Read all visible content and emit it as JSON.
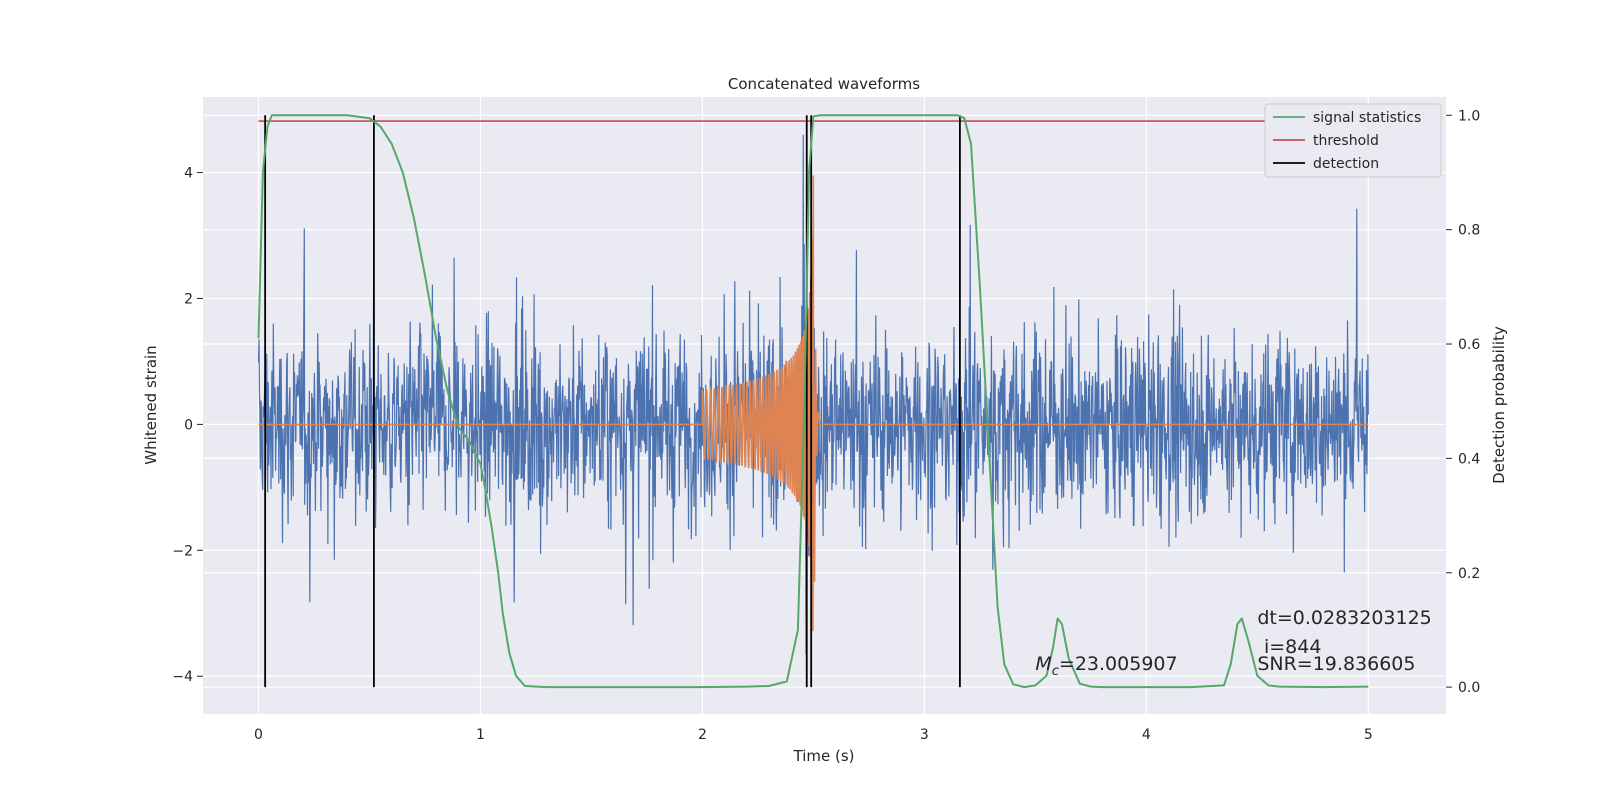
{
  "chart_data": {
    "type": "line",
    "title": "Concatenated waveforms",
    "xlabel": "Time (s)",
    "ylabel_left": "Whitened strain",
    "ylabel_right": "Detection probability",
    "xlim": [
      -0.25,
      5.35
    ],
    "ylim_left": [
      -4.6,
      5.2
    ],
    "ylim_right": [
      -0.047,
      1.032
    ],
    "x_ticks": [
      0,
      1,
      2,
      3,
      4,
      5
    ],
    "y_ticks_left": [
      -4,
      -2,
      0,
      2,
      4
    ],
    "y_ticks_left_labels": [
      "−4",
      "−2",
      "0",
      "2",
      "4"
    ],
    "y_ticks_right": [
      0.0,
      0.2,
      0.4,
      0.6,
      0.8,
      1.0
    ],
    "y_ticks_right_labels": [
      "0.0",
      "0.2",
      "0.4",
      "0.6",
      "0.8",
      "1.0"
    ],
    "grid": true,
    "legend_position": "top-right",
    "series": [
      {
        "name": "signal statistics",
        "axis": "right",
        "color": "#55a868",
        "x": [
          0.0,
          0.02,
          0.04,
          0.06,
          0.1,
          0.2,
          0.3,
          0.4,
          0.5,
          0.55,
          0.6,
          0.65,
          0.7,
          0.75,
          0.8,
          0.85,
          0.9,
          0.95,
          1.0,
          1.02,
          1.05,
          1.08,
          1.1,
          1.13,
          1.16,
          1.2,
          1.3,
          1.5,
          1.8,
          2.0,
          2.2,
          2.3,
          2.38,
          2.43,
          2.46,
          2.48,
          2.5,
          2.53,
          2.6,
          2.8,
          3.0,
          3.15,
          3.18,
          3.21,
          3.25,
          3.3,
          3.33,
          3.36,
          3.4,
          3.45,
          3.5,
          3.55,
          3.58,
          3.6,
          3.62,
          3.65,
          3.7,
          3.75,
          3.8,
          3.9,
          4.0,
          4.2,
          4.35,
          4.38,
          4.41,
          4.43,
          4.46,
          4.5,
          4.55,
          4.6,
          4.8,
          5.0
        ],
        "y": [
          0.61,
          0.9,
          0.98,
          1.0,
          1.0,
          1.0,
          1.0,
          1.0,
          0.995,
          0.98,
          0.95,
          0.9,
          0.82,
          0.72,
          0.61,
          0.52,
          0.455,
          0.43,
          0.39,
          0.35,
          0.28,
          0.2,
          0.13,
          0.06,
          0.02,
          0.002,
          0.0,
          0.0,
          0.0,
          0.0,
          0.001,
          0.002,
          0.01,
          0.1,
          0.5,
          0.9,
          0.998,
          1.0,
          1.0,
          1.0,
          1.0,
          1.0,
          0.995,
          0.95,
          0.7,
          0.35,
          0.14,
          0.04,
          0.005,
          0.0,
          0.003,
          0.02,
          0.07,
          0.12,
          0.11,
          0.05,
          0.006,
          0.001,
          0.0,
          0.0,
          0.0,
          0.0,
          0.003,
          0.04,
          0.11,
          0.12,
          0.08,
          0.02,
          0.003,
          0.001,
          0.0,
          0.001
        ]
      },
      {
        "name": "threshold",
        "axis": "right",
        "color": "#c44e52",
        "x": [
          0.0,
          5.0
        ],
        "y": [
          0.99,
          0.99
        ]
      },
      {
        "name": "detection",
        "axis": "right",
        "color": "#000000",
        "type": "vlines",
        "x": [
          0.03,
          0.52,
          2.47,
          2.49,
          3.16
        ],
        "ymin": 0.0,
        "ymax": 1.0
      },
      {
        "axis": "left",
        "color": "#4c72b0",
        "description": "whitened strain noise",
        "x_range": [
          0,
          5
        ],
        "amplitude_std": 0.75
      },
      {
        "axis": "left",
        "color": "#dd8452",
        "description": "injected chirp waveform",
        "x_start": 2.0,
        "x_merger": 2.5,
        "peak": 4.0
      }
    ],
    "annotations": [
      {
        "text": "dt=0.0283203125",
        "x": 4.5,
        "y_right": 0.11
      },
      {
        "text": "i=844",
        "x": 4.53,
        "y_right": 0.06
      },
      {
        "text": "SNR=19.836605",
        "x": 4.5,
        "y_right": 0.03
      },
      {
        "text_prefix": "M",
        "text_sub": "c",
        "text_suffix": "=23.005907",
        "x": 3.5,
        "y_right": 0.03
      }
    ]
  }
}
